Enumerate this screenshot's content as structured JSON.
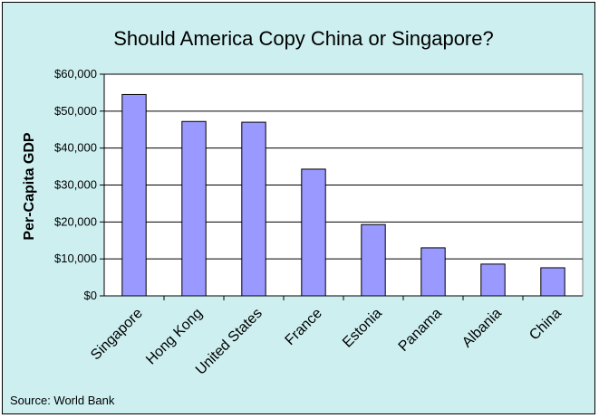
{
  "chart_data": {
    "type": "bar",
    "title": "Should America Copy China or Singapore?",
    "ylabel": "Per-Capita GDP",
    "xlabel": "",
    "categories": [
      "Singapore",
      "Hong Kong",
      "United States",
      "France",
      "Estonia",
      "Panama",
      "Albania",
      "China"
    ],
    "values": [
      54500,
      47200,
      47000,
      34300,
      19300,
      13000,
      8600,
      7600
    ],
    "ylim": [
      0,
      60000
    ],
    "yticks": [
      0,
      10000,
      20000,
      30000,
      40000,
      50000,
      60000
    ],
    "ytick_labels": [
      "$0",
      "$10,000",
      "$20,000",
      "$30,000",
      "$40,000",
      "$50,000",
      "$60,000"
    ],
    "grid": true,
    "bar_color": "#9999ff",
    "plot_background": "#ffffff",
    "chart_background": "#cdeff0",
    "source": "Source: World Bank"
  }
}
